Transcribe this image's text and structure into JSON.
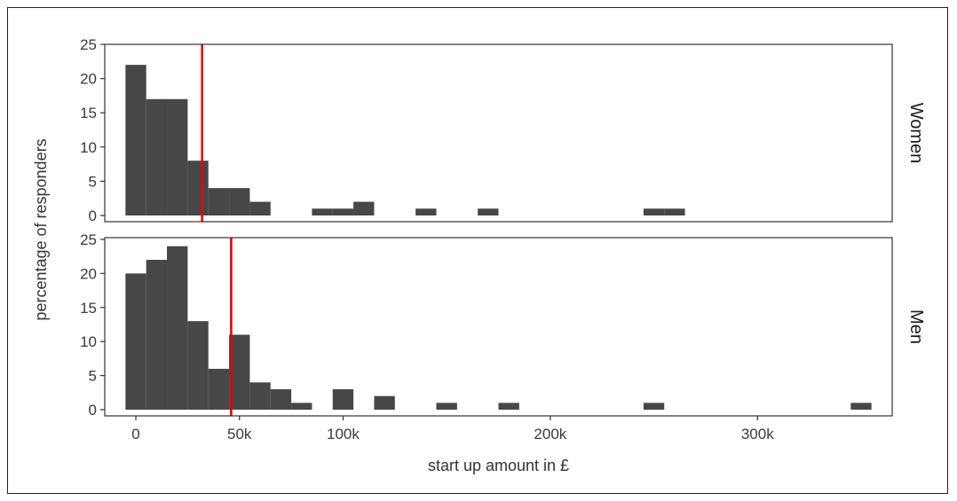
{
  "chart_data": {
    "type": "bar",
    "subtype": "faceted-histogram",
    "xlabel": "start up amount in £",
    "ylabel": "percentage of responders",
    "x_ticks": [
      {
        "value": 0,
        "label": "0"
      },
      {
        "value": 50000,
        "label": "50k"
      },
      {
        "value": 100000,
        "label": "100k"
      },
      {
        "value": 200000,
        "label": "200k"
      },
      {
        "value": 300000,
        "label": "300k"
      }
    ],
    "y_ticks": [
      0,
      5,
      10,
      15,
      20,
      25
    ],
    "xlim": [
      -15000,
      365000
    ],
    "ylim": [
      0,
      25
    ],
    "bin_width": 10000,
    "grid": false,
    "bar_color": "#474747",
    "mean_line_color": "#e8000b",
    "panels": [
      {
        "name": "Women",
        "mean": 32000,
        "bins": [
          {
            "x": 0,
            "y": 22
          },
          {
            "x": 10000,
            "y": 17
          },
          {
            "x": 20000,
            "y": 17
          },
          {
            "x": 30000,
            "y": 8
          },
          {
            "x": 40000,
            "y": 4
          },
          {
            "x": 50000,
            "y": 4
          },
          {
            "x": 60000,
            "y": 2
          },
          {
            "x": 90000,
            "y": 1
          },
          {
            "x": 100000,
            "y": 1
          },
          {
            "x": 110000,
            "y": 2
          },
          {
            "x": 140000,
            "y": 1
          },
          {
            "x": 170000,
            "y": 1
          },
          {
            "x": 250000,
            "y": 1
          },
          {
            "x": 260000,
            "y": 1
          }
        ]
      },
      {
        "name": "Men",
        "mean": 46000,
        "bins": [
          {
            "x": 0,
            "y": 20
          },
          {
            "x": 10000,
            "y": 22
          },
          {
            "x": 20000,
            "y": 24
          },
          {
            "x": 30000,
            "y": 13
          },
          {
            "x": 40000,
            "y": 6
          },
          {
            "x": 50000,
            "y": 11
          },
          {
            "x": 60000,
            "y": 4
          },
          {
            "x": 70000,
            "y": 3
          },
          {
            "x": 80000,
            "y": 1
          },
          {
            "x": 100000,
            "y": 3
          },
          {
            "x": 120000,
            "y": 2
          },
          {
            "x": 150000,
            "y": 1
          },
          {
            "x": 180000,
            "y": 1
          },
          {
            "x": 250000,
            "y": 1
          },
          {
            "x": 350000,
            "y": 1
          }
        ]
      }
    ]
  }
}
